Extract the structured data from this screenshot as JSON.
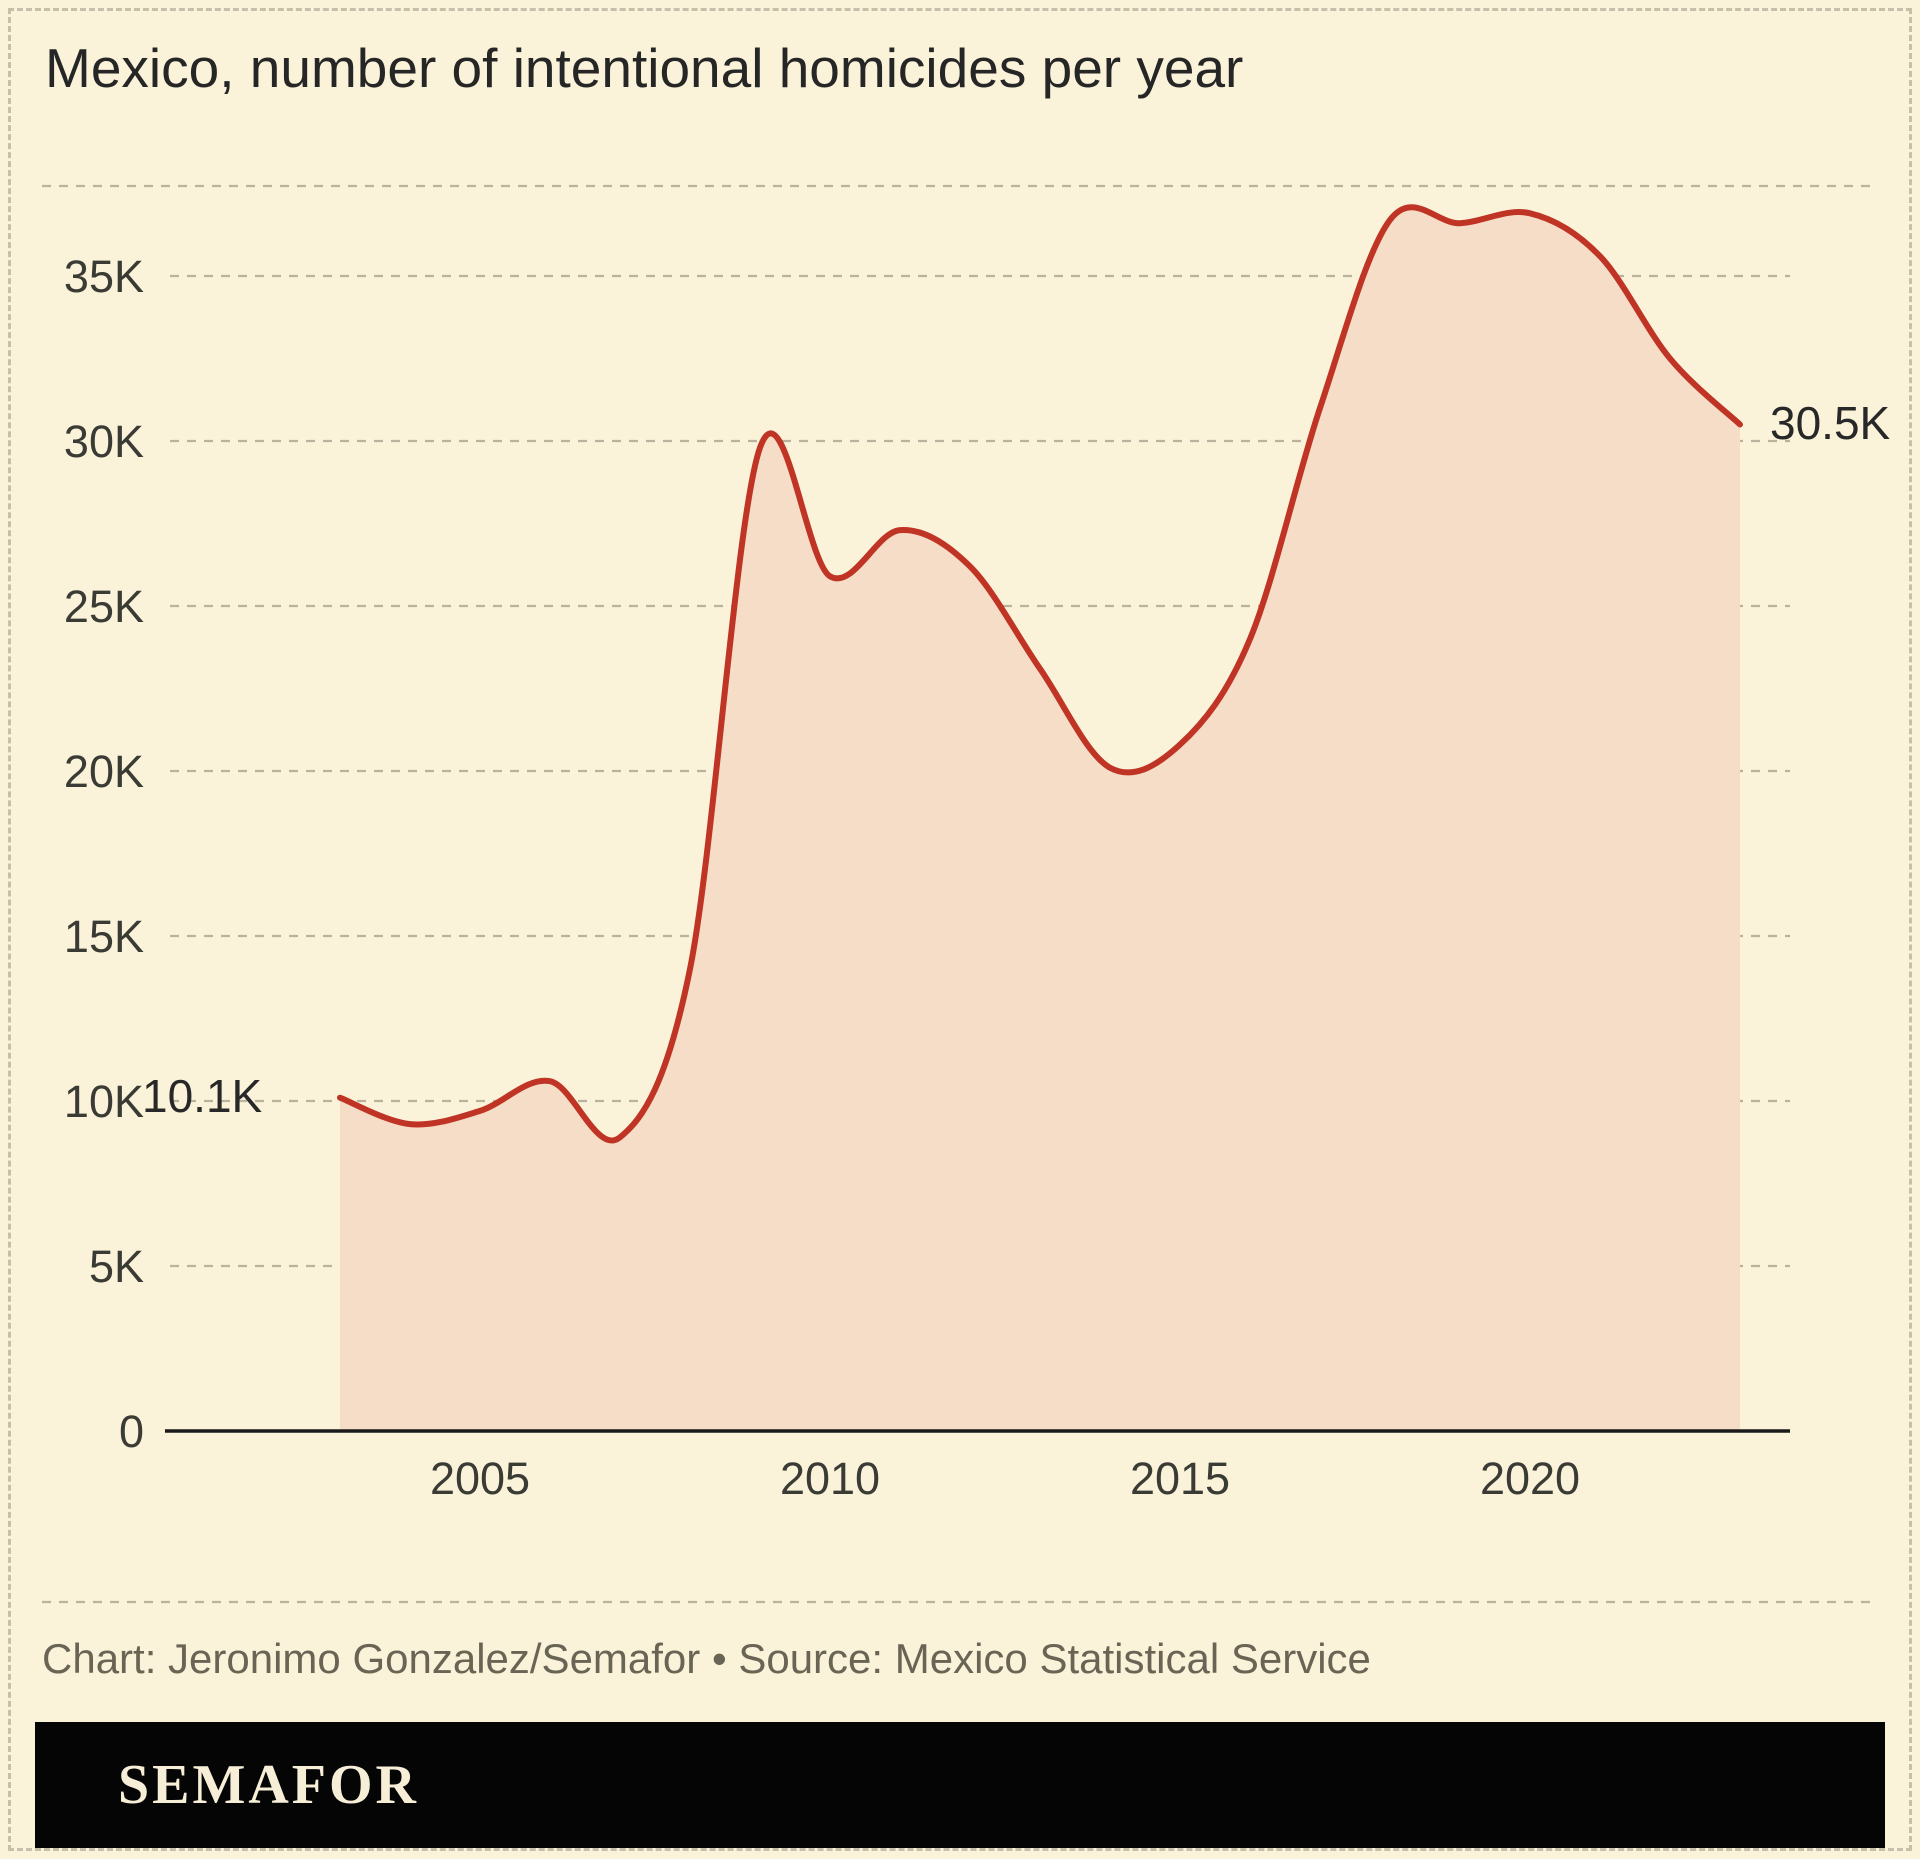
{
  "title": "Mexico, number of intentional homicides per year",
  "caption": "Chart: Jeronimo Gonzalez/Semafor • Source: Mexico Statistical Service",
  "footer": {
    "brand": "SEMAFOR"
  },
  "annotations": {
    "start_label": "10.1K",
    "end_label": "30.5K"
  },
  "colors": {
    "background": "#FAF3DA",
    "line": "#BF3425",
    "area_fill": "#F5DDC7",
    "grid": "#B9B29E",
    "frame_border": "#C6BFA9",
    "axis": "#1A1A1A",
    "title_text": "#262626",
    "tick_text": "#3B3B35",
    "caption_text": "#6A6455",
    "footer_bg": "#050505",
    "footer_text": "#F6EED6",
    "value_label_text": "#282828"
  },
  "chart_data": {
    "type": "area",
    "title": "Mexico, number of intentional homicides per year",
    "xlabel": "",
    "ylabel": "",
    "x": [
      2003,
      2004,
      2005,
      2006,
      2007,
      2008,
      2009,
      2010,
      2011,
      2012,
      2013,
      2014,
      2015,
      2016,
      2017,
      2018,
      2019,
      2020,
      2021,
      2022,
      2023
    ],
    "values": [
      10100,
      9300,
      9700,
      10600,
      8900,
      14000,
      29800,
      25900,
      27300,
      26200,
      23100,
      20100,
      20800,
      24000,
      31000,
      36700,
      36600,
      36900,
      35600,
      32500,
      30500
    ],
    "xlim": [
      2003,
      2023
    ],
    "ylim": [
      0,
      37700
    ],
    "x_ticks": [
      2005,
      2010,
      2015,
      2020
    ],
    "y_ticks": [
      0,
      5000,
      10000,
      15000,
      20000,
      25000,
      30000,
      35000
    ],
    "y_tick_labels": [
      "0",
      "5K",
      "10K",
      "15K",
      "20K",
      "25K",
      "30K",
      "35K"
    ],
    "grid": "dashed horizontal",
    "legend": "none",
    "smoothing": "spline",
    "first_point_label": "10.1K",
    "last_point_label": "30.5K"
  }
}
